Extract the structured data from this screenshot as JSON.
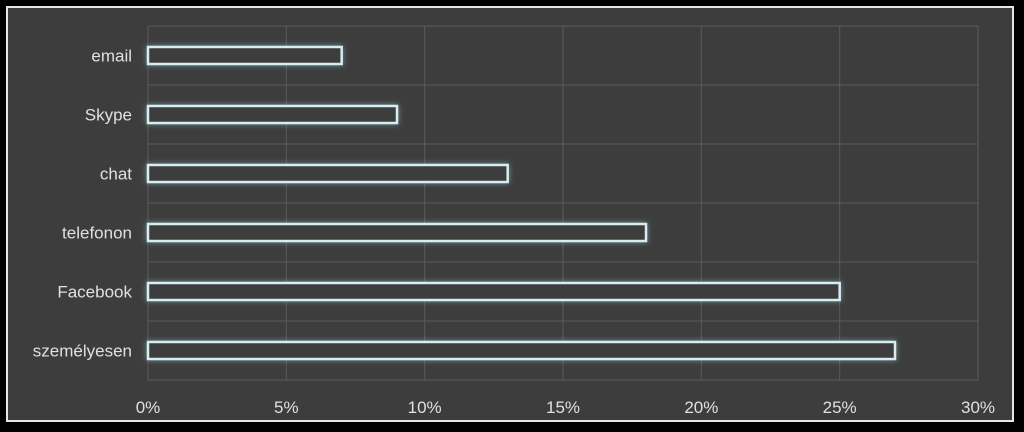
{
  "chart_data": {
    "type": "bar",
    "orientation": "horizontal",
    "categories": [
      "email",
      "Skype",
      "chat",
      "telefonon",
      "Facebook",
      "személyesen"
    ],
    "values": [
      7,
      9,
      13,
      18,
      25,
      27
    ],
    "xlim": [
      0,
      30
    ],
    "xticks": [
      0,
      5,
      10,
      15,
      20,
      25,
      30
    ],
    "xtick_labels": [
      "0%",
      "5%",
      "10%",
      "15%",
      "20%",
      "25%",
      "30%"
    ],
    "grid": true,
    "legend": "none",
    "colors": {
      "background": "#3d3d3d",
      "bar_outline": "#d6eef2",
      "bar_glow": "#9fd6e0",
      "grid": "#5a5a5a",
      "text": "#e0e0e0",
      "frame": "#e6e6e6"
    }
  }
}
